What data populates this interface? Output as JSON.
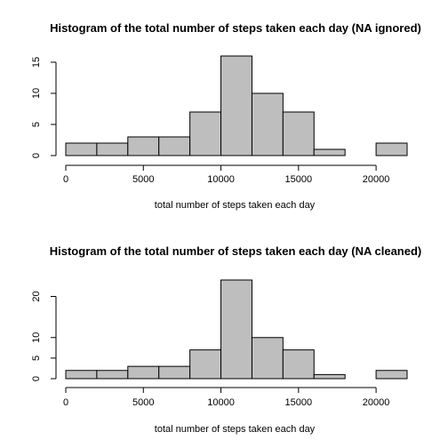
{
  "chart_data": [
    {
      "type": "bar",
      "title": "Histogram of the total number of steps taken each day (NA ignored)",
      "xlabel": "total number of steps taken each day",
      "ylabel": "",
      "bin_edges": [
        0,
        2000,
        4000,
        6000,
        8000,
        10000,
        12000,
        14000,
        16000,
        18000,
        20000,
        22000
      ],
      "values": [
        2,
        2,
        3,
        3,
        7,
        16,
        10,
        7,
        1,
        0,
        2
      ],
      "xlim": [
        0,
        22000
      ],
      "ylim": [
        0,
        16
      ],
      "xticks": [
        0,
        5000,
        10000,
        15000,
        20000
      ],
      "yticks": [
        0,
        5,
        10,
        15
      ],
      "colors": {
        "bar_fill": "#bebebe",
        "bar_stroke": "#000000"
      },
      "grid": false,
      "legend": "none"
    },
    {
      "type": "bar",
      "title": "Histogram of the total number of steps taken each day (NA cleaned)",
      "xlabel": "total number of steps taken each day",
      "ylabel": "",
      "bin_edges": [
        0,
        2000,
        4000,
        6000,
        8000,
        10000,
        12000,
        14000,
        16000,
        18000,
        20000,
        22000
      ],
      "values": [
        2,
        2,
        3,
        3,
        7,
        24,
        10,
        7,
        1,
        0,
        2
      ],
      "xlim": [
        0,
        22000
      ],
      "ylim": [
        0,
        24
      ],
      "xticks": [
        0,
        5000,
        10000,
        15000,
        20000
      ],
      "yticks": [
        0,
        5,
        10,
        20
      ],
      "colors": {
        "bar_fill": "#bebebe",
        "bar_stroke": "#000000"
      },
      "grid": false,
      "legend": "none"
    }
  ]
}
